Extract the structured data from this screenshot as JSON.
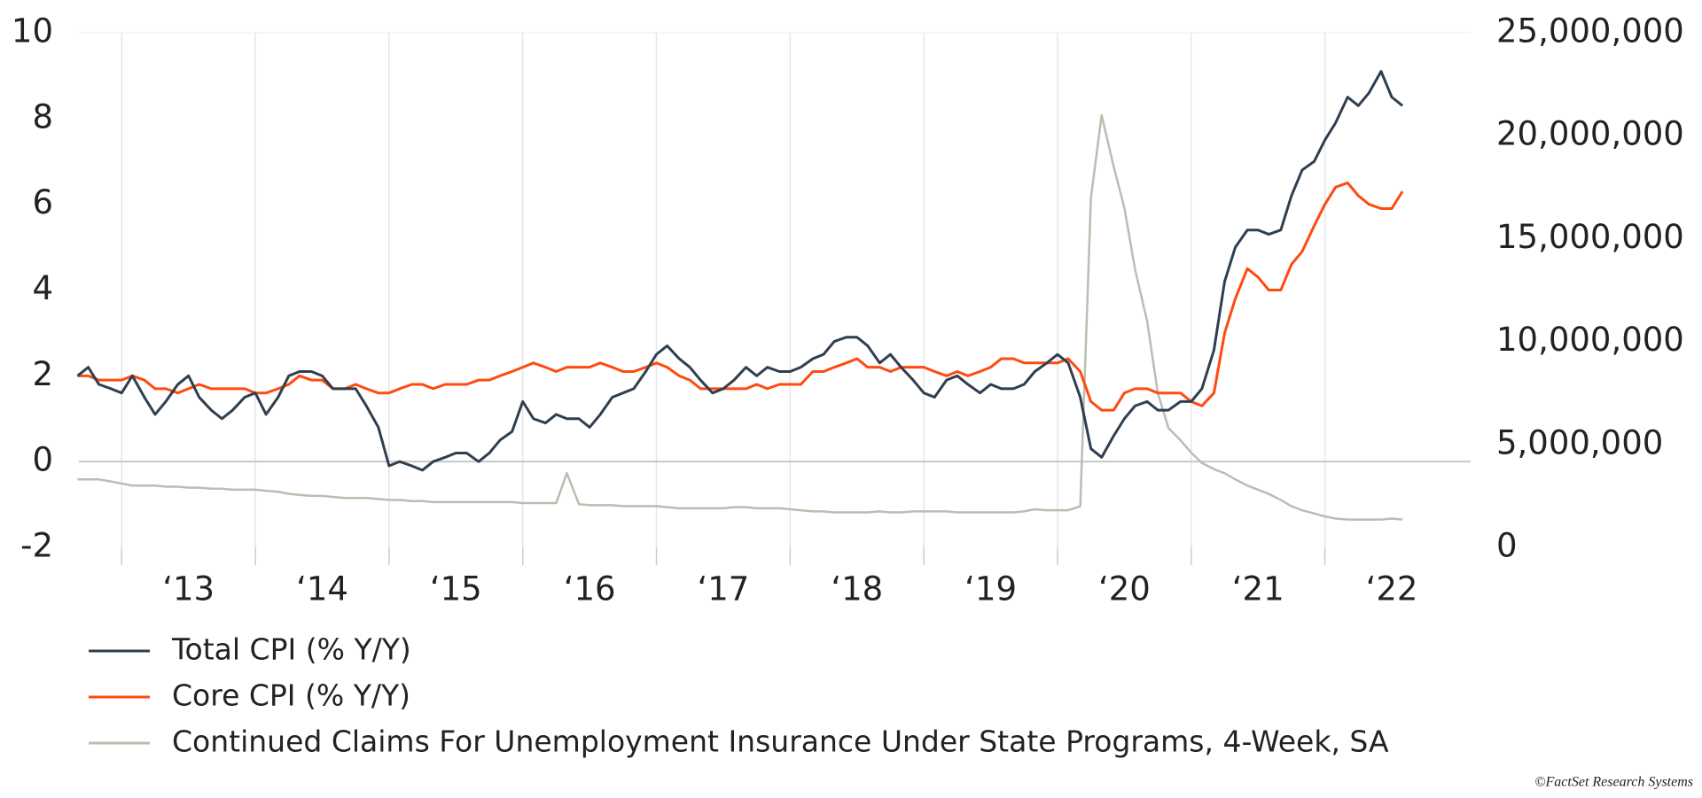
{
  "chart_data": {
    "type": "line",
    "x": [
      2012.67,
      2012.75,
      2012.83,
      2012.92,
      2013.0,
      2013.08,
      2013.17,
      2013.25,
      2013.33,
      2013.42,
      2013.5,
      2013.58,
      2013.67,
      2013.75,
      2013.83,
      2013.92,
      2014.0,
      2014.08,
      2014.17,
      2014.25,
      2014.33,
      2014.42,
      2014.5,
      2014.58,
      2014.67,
      2014.75,
      2014.83,
      2014.92,
      2015.0,
      2015.08,
      2015.17,
      2015.25,
      2015.33,
      2015.42,
      2015.5,
      2015.58,
      2015.67,
      2015.75,
      2015.83,
      2015.92,
      2016.0,
      2016.08,
      2016.17,
      2016.25,
      2016.33,
      2016.42,
      2016.5,
      2016.58,
      2016.67,
      2016.75,
      2016.83,
      2016.92,
      2017.0,
      2017.08,
      2017.17,
      2017.25,
      2017.33,
      2017.42,
      2017.5,
      2017.58,
      2017.67,
      2017.75,
      2017.83,
      2017.92,
      2018.0,
      2018.08,
      2018.17,
      2018.25,
      2018.33,
      2018.42,
      2018.5,
      2018.58,
      2018.67,
      2018.75,
      2018.83,
      2018.92,
      2019.0,
      2019.08,
      2019.17,
      2019.25,
      2019.33,
      2019.42,
      2019.5,
      2019.58,
      2019.67,
      2019.75,
      2019.83,
      2019.92,
      2020.0,
      2020.08,
      2020.17,
      2020.25,
      2020.33,
      2020.42,
      2020.5,
      2020.58,
      2020.67,
      2020.75,
      2020.83,
      2020.92,
      2021.0,
      2021.08,
      2021.17,
      2021.25,
      2021.33,
      2021.42,
      2021.5,
      2021.58,
      2021.67,
      2021.75,
      2021.83,
      2021.92,
      2022.0,
      2022.08,
      2022.17,
      2022.25,
      2022.33,
      2022.42,
      2022.5,
      2022.58
    ],
    "series": [
      {
        "name": "Total CPI (% Y/Y)",
        "color": "#2f3f4f",
        "values": [
          2.0,
          2.2,
          1.8,
          1.7,
          1.6,
          2.0,
          1.5,
          1.1,
          1.4,
          1.8,
          2.0,
          1.5,
          1.2,
          1.0,
          1.2,
          1.5,
          1.6,
          1.1,
          1.5,
          2.0,
          2.1,
          2.1,
          2.0,
          1.7,
          1.7,
          1.7,
          1.3,
          0.8,
          -0.1,
          0.0,
          -0.1,
          -0.2,
          0.0,
          0.1,
          0.2,
          0.2,
          0.0,
          0.2,
          0.5,
          0.7,
          1.4,
          1.0,
          0.9,
          1.1,
          1.0,
          1.0,
          0.8,
          1.1,
          1.5,
          1.6,
          1.7,
          2.1,
          2.5,
          2.7,
          2.4,
          2.2,
          1.9,
          1.6,
          1.7,
          1.9,
          2.2,
          2.0,
          2.2,
          2.1,
          2.1,
          2.2,
          2.4,
          2.5,
          2.8,
          2.9,
          2.9,
          2.7,
          2.3,
          2.5,
          2.2,
          1.9,
          1.6,
          1.5,
          1.9,
          2.0,
          1.8,
          1.6,
          1.8,
          1.7,
          1.7,
          1.8,
          2.1,
          2.3,
          2.5,
          2.3,
          1.5,
          0.3,
          0.1,
          0.6,
          1.0,
          1.3,
          1.4,
          1.2,
          1.2,
          1.4,
          1.4,
          1.7,
          2.6,
          4.2,
          5.0,
          5.4,
          5.4,
          5.3,
          5.4,
          6.2,
          6.8,
          7.0,
          7.5,
          7.9,
          8.5,
          8.3,
          8.6,
          9.1,
          8.5,
          8.3
        ]
      },
      {
        "name": "Core CPI (% Y/Y)",
        "color": "#ff4a10",
        "values": [
          2.0,
          2.0,
          1.9,
          1.9,
          1.9,
          2.0,
          1.9,
          1.7,
          1.7,
          1.6,
          1.7,
          1.8,
          1.7,
          1.7,
          1.7,
          1.7,
          1.6,
          1.6,
          1.7,
          1.8,
          2.0,
          1.9,
          1.9,
          1.7,
          1.7,
          1.8,
          1.7,
          1.6,
          1.6,
          1.7,
          1.8,
          1.8,
          1.7,
          1.8,
          1.8,
          1.8,
          1.9,
          1.9,
          2.0,
          2.1,
          2.2,
          2.3,
          2.2,
          2.1,
          2.2,
          2.2,
          2.2,
          2.3,
          2.2,
          2.1,
          2.1,
          2.2,
          2.3,
          2.2,
          2.0,
          1.9,
          1.7,
          1.7,
          1.7,
          1.7,
          1.7,
          1.8,
          1.7,
          1.8,
          1.8,
          1.8,
          2.1,
          2.1,
          2.2,
          2.3,
          2.4,
          2.2,
          2.2,
          2.1,
          2.2,
          2.2,
          2.2,
          2.1,
          2.0,
          2.1,
          2.0,
          2.1,
          2.2,
          2.4,
          2.4,
          2.3,
          2.3,
          2.3,
          2.3,
          2.4,
          2.1,
          1.4,
          1.2,
          1.2,
          1.6,
          1.7,
          1.7,
          1.6,
          1.6,
          1.6,
          1.4,
          1.3,
          1.6,
          3.0,
          3.8,
          4.5,
          4.3,
          4.0,
          4.0,
          4.6,
          4.9,
          5.5,
          6.0,
          6.4,
          6.5,
          6.2,
          6.0,
          5.9,
          5.9,
          6.3
        ]
      },
      {
        "name": "Continued Claims For Unemployment Insurance Under State Programs, 4-Week, SA",
        "color": "#bdbcb0",
        "axis": "y2",
        "values": [
          3300000,
          3300000,
          3300000,
          3200000,
          3100000,
          3000000,
          3000000,
          3000000,
          2950000,
          2950000,
          2900000,
          2900000,
          2850000,
          2850000,
          2800000,
          2800000,
          2800000,
          2750000,
          2700000,
          2600000,
          2550000,
          2500000,
          2500000,
          2450000,
          2400000,
          2400000,
          2400000,
          2350000,
          2300000,
          2300000,
          2250000,
          2250000,
          2200000,
          2200000,
          2200000,
          2200000,
          2200000,
          2200000,
          2200000,
          2200000,
          2150000,
          2150000,
          2150000,
          2150000,
          3600000,
          2100000,
          2050000,
          2050000,
          2050000,
          2000000,
          2000000,
          2000000,
          2000000,
          1950000,
          1900000,
          1900000,
          1900000,
          1900000,
          1900000,
          1950000,
          1950000,
          1900000,
          1900000,
          1900000,
          1850000,
          1800000,
          1750000,
          1750000,
          1700000,
          1700000,
          1700000,
          1700000,
          1750000,
          1700000,
          1700000,
          1750000,
          1750000,
          1750000,
          1750000,
          1700000,
          1700000,
          1700000,
          1700000,
          1700000,
          1700000,
          1750000,
          1850000,
          1800000,
          1800000,
          1800000,
          2000000,
          17000000,
          21000000,
          18500000,
          16500000,
          13500000,
          11000000,
          7500000,
          5800000,
          5200000,
          4600000,
          4100000,
          3800000,
          3600000,
          3300000,
          3000000,
          2800000,
          2600000,
          2300000,
          2000000,
          1800000,
          1650000,
          1500000,
          1400000,
          1350000,
          1350000,
          1350000,
          1350000,
          1400000,
          1350000
        ]
      }
    ],
    "xlim": [
      2012.68,
      2023.09
    ],
    "xticks": [
      {
        "value": 2013,
        "label": "‘13"
      },
      {
        "value": 2014,
        "label": "‘14"
      },
      {
        "value": 2015,
        "label": "‘15"
      },
      {
        "value": 2016,
        "label": "‘16"
      },
      {
        "value": 2017,
        "label": "‘17"
      },
      {
        "value": 2018,
        "label": "‘18"
      },
      {
        "value": 2019,
        "label": "‘19"
      },
      {
        "value": 2020,
        "label": "‘20"
      },
      {
        "value": 2021,
        "label": "‘21"
      },
      {
        "value": 2022,
        "label": "‘22"
      }
    ],
    "ylim": [
      -2,
      10
    ],
    "yticks": [
      -2,
      0,
      2,
      4,
      6,
      8,
      10
    ],
    "y2lim": [
      0,
      25000000
    ],
    "y2ticks": [
      0,
      {
        "value": 5000000,
        "label": "5,000,000"
      },
      {
        "value": 10000000,
        "label": "10,000,000"
      },
      {
        "value": 15000000,
        "label": "15,000,000"
      },
      {
        "value": 20000000,
        "label": "20,000,000"
      },
      {
        "value": 25000000,
        "label": "25,000,000"
      }
    ],
    "grid": true,
    "legend": "bottom",
    "source": "©FactSet Research Systems"
  }
}
